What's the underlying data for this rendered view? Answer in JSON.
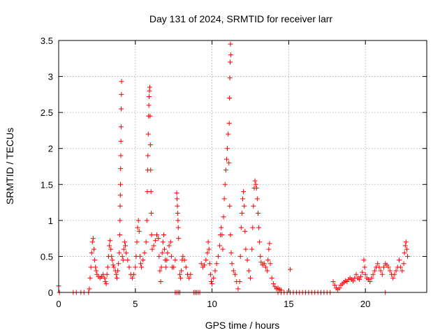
{
  "chart_data": {
    "type": "scatter",
    "title": "Day 131 of 2024, SRMTID for receiver larr",
    "xlabel": "GPS time / hours",
    "ylabel": "SRMTID / TECUs",
    "xlim": [
      0,
      24
    ],
    "ylim": [
      0,
      3.5
    ],
    "x_ticks": [
      0,
      5,
      10,
      15,
      20
    ],
    "x_tick_labels": [
      "0",
      "5",
      "10",
      "15",
      "20"
    ],
    "y_ticks": [
      0,
      0.5,
      1,
      1.5,
      2,
      2.5,
      3,
      3.5
    ],
    "y_tick_labels": [
      "0",
      "0.5",
      "1",
      "1.5",
      "2",
      "2.5",
      "3",
      "3.5"
    ],
    "grid": true,
    "marker": "plus",
    "color": "#ff0000",
    "series": [
      {
        "name": "SRMTID",
        "points": [
          [
            0.0,
            0.09
          ],
          [
            0.05,
            0.0
          ],
          [
            0.95,
            0.0
          ],
          [
            1.15,
            0.0
          ],
          [
            1.45,
            0.0
          ],
          [
            1.65,
            0.0
          ],
          [
            1.95,
            0.0
          ],
          [
            2.0,
            0.05
          ],
          [
            2.05,
            0.2
          ],
          [
            2.1,
            0.35
          ],
          [
            2.15,
            0.55
          ],
          [
            2.2,
            0.7
          ],
          [
            2.25,
            0.75
          ],
          [
            2.3,
            0.6
          ],
          [
            2.35,
            0.45
          ],
          [
            2.4,
            0.35
          ],
          [
            2.45,
            0.3
          ],
          [
            2.5,
            0.25
          ],
          [
            2.6,
            0.22
          ],
          [
            2.7,
            0.2
          ],
          [
            2.8,
            0.22
          ],
          [
            2.9,
            0.25
          ],
          [
            3.0,
            0.2
          ],
          [
            3.05,
            0.15
          ],
          [
            3.1,
            0.12
          ],
          [
            3.15,
            0.25
          ],
          [
            3.2,
            0.35
          ],
          [
            3.25,
            0.5
          ],
          [
            3.3,
            0.65
          ],
          [
            3.35,
            0.72
          ],
          [
            3.4,
            0.6
          ],
          [
            3.45,
            0.5
          ],
          [
            3.5,
            0.45
          ],
          [
            3.55,
            0.38
          ],
          [
            3.6,
            0.35
          ],
          [
            3.7,
            0.3
          ],
          [
            3.75,
            0.25
          ],
          [
            3.8,
            0.2
          ],
          [
            3.85,
            0.3
          ],
          [
            3.9,
            0.4
          ],
          [
            3.95,
            0.55
          ],
          [
            3.98,
            0.8
          ],
          [
            4.0,
            1.0
          ],
          [
            4.01,
            1.2
          ],
          [
            4.02,
            1.35
          ],
          [
            4.03,
            1.5
          ],
          [
            4.04,
            1.72
          ],
          [
            4.05,
            1.9
          ],
          [
            4.06,
            2.1
          ],
          [
            4.07,
            2.3
          ],
          [
            4.08,
            2.55
          ],
          [
            4.09,
            2.75
          ],
          [
            4.1,
            2.93
          ],
          [
            4.15,
            0.5
          ],
          [
            4.2,
            0.45
          ],
          [
            4.25,
            0.6
          ],
          [
            4.3,
            0.7
          ],
          [
            4.35,
            0.65
          ],
          [
            4.4,
            0.55
          ],
          [
            4.5,
            0.45
          ],
          [
            4.6,
            0.35
          ],
          [
            4.7,
            0.25
          ],
          [
            4.8,
            0.2
          ],
          [
            4.9,
            0.25
          ],
          [
            5.0,
            0.35
          ],
          [
            5.05,
            0.5
          ],
          [
            5.1,
            0.7
          ],
          [
            5.15,
            0.9
          ],
          [
            5.2,
            1.0
          ],
          [
            5.25,
            0.85
          ],
          [
            5.3,
            0.5
          ],
          [
            5.35,
            0.4
          ],
          [
            5.4,
            0.35
          ],
          [
            5.5,
            0.45
          ],
          [
            5.6,
            0.55
          ],
          [
            5.7,
            0.7
          ],
          [
            5.75,
            1.0
          ],
          [
            5.78,
            1.4
          ],
          [
            5.8,
            1.7
          ],
          [
            5.82,
            1.9
          ],
          [
            5.84,
            2.2
          ],
          [
            5.86,
            2.45
          ],
          [
            5.88,
            2.6
          ],
          [
            5.9,
            2.72
          ],
          [
            5.92,
            2.8
          ],
          [
            5.94,
            2.85
          ],
          [
            5.96,
            2.45
          ],
          [
            5.98,
            2.05
          ],
          [
            6.0,
            1.7
          ],
          [
            6.02,
            1.4
          ],
          [
            6.04,
            1.1
          ],
          [
            6.06,
            0.8
          ],
          [
            6.1,
            0.6
          ],
          [
            6.2,
            0.65
          ],
          [
            6.3,
            0.72
          ],
          [
            6.4,
            0.8
          ],
          [
            6.5,
            0.75
          ],
          [
            6.55,
            0.5
          ],
          [
            6.6,
            0.3
          ],
          [
            6.65,
            0.15
          ],
          [
            6.7,
            0.35
          ],
          [
            6.75,
            0.55
          ],
          [
            6.8,
            0.7
          ],
          [
            6.85,
            0.8
          ],
          [
            6.9,
            0.6
          ],
          [
            6.95,
            0.45
          ],
          [
            7.0,
            0.35
          ],
          [
            7.05,
            0.45
          ],
          [
            7.1,
            0.55
          ],
          [
            7.2,
            0.65
          ],
          [
            7.3,
            0.7
          ],
          [
            7.35,
            0.5
          ],
          [
            7.4,
            0.35
          ],
          [
            7.5,
            0.35
          ],
          [
            7.6,
            0.45
          ],
          [
            7.6,
            0.0
          ],
          [
            7.7,
            0.0
          ],
          [
            7.8,
            0.0
          ],
          [
            7.9,
            0.0
          ],
          [
            7.7,
            1.38
          ],
          [
            7.72,
            1.3
          ],
          [
            7.74,
            1.2
          ],
          [
            7.76,
            1.1
          ],
          [
            7.78,
            1.0
          ],
          [
            7.8,
            0.9
          ],
          [
            7.82,
            0.75
          ],
          [
            7.9,
            0.25
          ],
          [
            7.95,
            0.2
          ],
          [
            8.0,
            0.3
          ],
          [
            8.05,
            0.45
          ],
          [
            8.1,
            0.5
          ],
          [
            8.2,
            0.45
          ],
          [
            8.3,
            0.35
          ],
          [
            8.4,
            0.25
          ],
          [
            8.5,
            0.2
          ],
          [
            8.6,
            0.25
          ],
          [
            8.8,
            0.0
          ],
          [
            8.9,
            0.0
          ],
          [
            9.0,
            0.0
          ],
          [
            9.1,
            0.0
          ],
          [
            9.2,
            0.0
          ],
          [
            9.3,
            0.4
          ],
          [
            9.4,
            0.35
          ],
          [
            9.5,
            0.38
          ],
          [
            9.6,
            0.45
          ],
          [
            9.7,
            0.55
          ],
          [
            9.75,
            0.7
          ],
          [
            9.8,
            0.6
          ],
          [
            9.85,
            0.4
          ],
          [
            9.9,
            0.25
          ],
          [
            9.95,
            0.15
          ],
          [
            10.0,
            0.12
          ],
          [
            10.1,
            0.2
          ],
          [
            10.2,
            0.3
          ],
          [
            10.3,
            0.4
          ],
          [
            10.4,
            0.5
          ],
          [
            10.5,
            0.65
          ],
          [
            10.55,
            0.8
          ],
          [
            10.6,
            0.9
          ],
          [
            10.65,
            0.8
          ],
          [
            10.7,
            0.6
          ],
          [
            10.75,
            1.05
          ],
          [
            10.8,
            1.3
          ],
          [
            10.85,
            1.5
          ],
          [
            10.9,
            1.7
          ],
          [
            10.95,
            1.85
          ],
          [
            11.0,
            2.0
          ],
          [
            11.05,
            2.2
          ],
          [
            11.1,
            1.8
          ],
          [
            11.15,
            1.2
          ],
          [
            11.2,
            0.8
          ],
          [
            11.25,
            0.55
          ],
          [
            11.12,
            2.35
          ],
          [
            11.14,
            2.7
          ],
          [
            11.16,
            2.98
          ],
          [
            11.18,
            3.2
          ],
          [
            11.2,
            3.45
          ],
          [
            11.22,
            3.3
          ],
          [
            11.3,
            0.4
          ],
          [
            11.4,
            0.3
          ],
          [
            11.5,
            0.25
          ],
          [
            11.6,
            0.15
          ],
          [
            11.7,
            0.05
          ],
          [
            11.8,
            0.15
          ],
          [
            11.85,
            0.5
          ],
          [
            11.9,
            0.9
          ],
          [
            11.95,
            1.1
          ],
          [
            12.0,
            1.3
          ],
          [
            12.05,
            1.4
          ],
          [
            12.1,
            1.2
          ],
          [
            12.15,
            0.85
          ],
          [
            12.2,
            0.6
          ],
          [
            12.3,
            0.45
          ],
          [
            12.4,
            0.3
          ],
          [
            12.5,
            0.2
          ],
          [
            12.6,
            0.6
          ],
          [
            12.65,
            0.9
          ],
          [
            12.7,
            1.2
          ],
          [
            12.75,
            1.45
          ],
          [
            12.8,
            1.55
          ],
          [
            12.85,
            1.5
          ],
          [
            12.9,
            1.45
          ],
          [
            12.95,
            1.3
          ],
          [
            13.0,
            1.1
          ],
          [
            13.05,
            0.9
          ],
          [
            13.1,
            0.7
          ],
          [
            13.15,
            0.5
          ],
          [
            13.2,
            0.42
          ],
          [
            13.3,
            0.38
          ],
          [
            13.4,
            0.4
          ],
          [
            13.5,
            0.35
          ],
          [
            13.6,
            0.3
          ],
          [
            13.65,
            0.45
          ],
          [
            13.7,
            0.6
          ],
          [
            13.75,
            0.68
          ],
          [
            13.8,
            0.4
          ],
          [
            13.9,
            0.2
          ],
          [
            14.0,
            0.12
          ],
          [
            14.1,
            0.08
          ],
          [
            14.2,
            0.05
          ],
          [
            14.3,
            0.06
          ],
          [
            14.4,
            0.04
          ],
          [
            14.5,
            0.03
          ],
          [
            14.3,
            0.0
          ],
          [
            14.5,
            0.0
          ],
          [
            14.7,
            0.0
          ],
          [
            14.9,
            0.0
          ],
          [
            15.1,
            0.0
          ],
          [
            15.3,
            0.0
          ],
          [
            15.5,
            0.0
          ],
          [
            15.7,
            0.0
          ],
          [
            15.9,
            0.0
          ],
          [
            16.1,
            0.0
          ],
          [
            16.3,
            0.0
          ],
          [
            16.5,
            0.0
          ],
          [
            16.7,
            0.0
          ],
          [
            16.9,
            0.0
          ],
          [
            17.1,
            0.0
          ],
          [
            17.3,
            0.0
          ],
          [
            17.5,
            0.0
          ],
          [
            17.7,
            0.0
          ],
          [
            15.1,
            0.32
          ],
          [
            17.9,
            0.15
          ],
          [
            18.0,
            0.1
          ],
          [
            18.1,
            0.06
          ],
          [
            18.2,
            0.04
          ],
          [
            18.3,
            0.06
          ],
          [
            18.4,
            0.1
          ],
          [
            18.5,
            0.12
          ],
          [
            18.6,
            0.14
          ],
          [
            18.7,
            0.16
          ],
          [
            18.8,
            0.15
          ],
          [
            18.9,
            0.18
          ],
          [
            19.0,
            0.2
          ],
          [
            19.1,
            0.18
          ],
          [
            19.2,
            0.16
          ],
          [
            19.3,
            0.2
          ],
          [
            19.4,
            0.25
          ],
          [
            19.5,
            0.2
          ],
          [
            19.6,
            0.18
          ],
          [
            19.7,
            0.22
          ],
          [
            19.8,
            0.28
          ],
          [
            19.9,
            0.45
          ],
          [
            19.95,
            0.35
          ],
          [
            20.0,
            0.25
          ],
          [
            20.1,
            0.2
          ],
          [
            20.2,
            0.18
          ],
          [
            20.3,
            0.15
          ],
          [
            20.4,
            0.2
          ],
          [
            20.5,
            0.25
          ],
          [
            20.6,
            0.3
          ],
          [
            20.7,
            0.35
          ],
          [
            20.8,
            0.4
          ],
          [
            20.9,
            0.35
          ],
          [
            21.0,
            0.3
          ],
          [
            21.1,
            0.25
          ],
          [
            21.2,
            0.35
          ],
          [
            21.3,
            0.4
          ],
          [
            21.4,
            0.38
          ],
          [
            21.5,
            0.35
          ],
          [
            21.6,
            0.3
          ],
          [
            21.7,
            0.25
          ],
          [
            21.8,
            0.2
          ],
          [
            21.9,
            0.25
          ],
          [
            22.0,
            0.3
          ],
          [
            22.1,
            0.35
          ],
          [
            22.2,
            0.45
          ],
          [
            22.3,
            0.35
          ],
          [
            22.4,
            0.3
          ],
          [
            22.5,
            0.4
          ],
          [
            22.55,
            0.55
          ],
          [
            22.6,
            0.65
          ],
          [
            22.65,
            0.7
          ],
          [
            22.7,
            0.6
          ],
          [
            22.75,
            0.5
          ],
          [
            21.3,
            0.0
          ]
        ]
      }
    ]
  }
}
